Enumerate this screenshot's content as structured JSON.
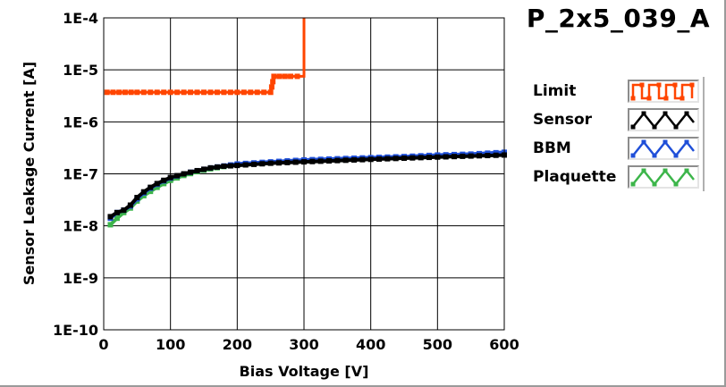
{
  "chart_data": {
    "type": "line",
    "title": "P_2x5_039_A",
    "xlabel": "Bias Voltage [V]",
    "ylabel": "Sensor Leakage Current [A]",
    "xlim": [
      0,
      600
    ],
    "ylim": [
      1e-10,
      0.0001
    ],
    "yscale": "log",
    "grid": true,
    "legend_placement": "right",
    "x_ticks": [
      "0",
      "100",
      "200",
      "300",
      "400",
      "500",
      "600"
    ],
    "y_ticks": [
      "1E-10",
      "1E-9",
      "1E-8",
      "1E-7",
      "1E-6",
      "1E-5",
      "1E-4"
    ],
    "series": [
      {
        "name": "Limit",
        "color": "#ff4500",
        "points": [
          [
            5,
            3.7e-06
          ],
          [
            50,
            3.7e-06
          ],
          [
            100,
            3.7e-06
          ],
          [
            150,
            3.7e-06
          ],
          [
            200,
            3.7e-06
          ],
          [
            250,
            3.7e-06
          ],
          [
            255,
            7.5e-06
          ],
          [
            280,
            7.5e-06
          ],
          [
            300,
            7.5e-06
          ],
          [
            300,
            0.0001
          ]
        ]
      },
      {
        "name": "Sensor",
        "color": "#000000",
        "points": [
          [
            10,
            1.5e-08
          ],
          [
            20,
            1.8e-08
          ],
          [
            30,
            2e-08
          ],
          [
            40,
            2.5e-08
          ],
          [
            50,
            3.5e-08
          ],
          [
            60,
            4.5e-08
          ],
          [
            70,
            5.5e-08
          ],
          [
            80,
            6.5e-08
          ],
          [
            90,
            7.5e-08
          ],
          [
            100,
            8.5e-08
          ],
          [
            120,
            1e-07
          ],
          [
            140,
            1.15e-07
          ],
          [
            160,
            1.3e-07
          ],
          [
            180,
            1.4e-07
          ],
          [
            200,
            1.45e-07
          ],
          [
            250,
            1.6e-07
          ],
          [
            300,
            1.7e-07
          ],
          [
            350,
            1.8e-07
          ],
          [
            400,
            1.9e-07
          ],
          [
            450,
            2e-07
          ],
          [
            500,
            2.1e-07
          ],
          [
            550,
            2.2e-07
          ],
          [
            600,
            2.3e-07
          ]
        ]
      },
      {
        "name": "BBM",
        "color": "#1f4fd8",
        "points": [
          [
            10,
            1.4e-08
          ],
          [
            20,
            1.8e-08
          ],
          [
            30,
            2e-08
          ],
          [
            40,
            2.4e-08
          ],
          [
            50,
            3.3e-08
          ],
          [
            60,
            4.3e-08
          ],
          [
            70,
            5.3e-08
          ],
          [
            80,
            6.3e-08
          ],
          [
            90,
            7.3e-08
          ],
          [
            100,
            8.3e-08
          ],
          [
            120,
            1e-07
          ],
          [
            140,
            1.15e-07
          ],
          [
            160,
            1.3e-07
          ],
          [
            180,
            1.42e-07
          ],
          [
            200,
            1.55e-07
          ],
          [
            250,
            1.7e-07
          ],
          [
            300,
            1.85e-07
          ],
          [
            350,
            1.95e-07
          ],
          [
            400,
            2.05e-07
          ],
          [
            450,
            2.15e-07
          ],
          [
            500,
            2.3e-07
          ],
          [
            550,
            2.4e-07
          ],
          [
            600,
            2.6e-07
          ]
        ]
      },
      {
        "name": "Plaquette",
        "color": "#3cb54a",
        "points": [
          [
            10,
            1.05e-08
          ],
          [
            20,
            1.4e-08
          ],
          [
            30,
            1.8e-08
          ],
          [
            40,
            2.2e-08
          ],
          [
            50,
            3e-08
          ],
          [
            60,
            3.8e-08
          ],
          [
            70,
            4.6e-08
          ],
          [
            80,
            5.5e-08
          ],
          [
            90,
            6.5e-08
          ],
          [
            100,
            7.5e-08
          ],
          [
            120,
            9.3e-08
          ],
          [
            140,
            1.1e-07
          ],
          [
            160,
            1.25e-07
          ],
          [
            180,
            1.38e-07
          ],
          [
            200,
            1.5e-07
          ],
          [
            250,
            1.62e-07
          ],
          [
            300,
            1.75e-07
          ],
          [
            350,
            1.85e-07
          ],
          [
            400,
            1.95e-07
          ],
          [
            450,
            2.05e-07
          ],
          [
            500,
            2.15e-07
          ],
          [
            550,
            2.25e-07
          ],
          [
            600,
            2.35e-07
          ]
        ]
      }
    ]
  }
}
